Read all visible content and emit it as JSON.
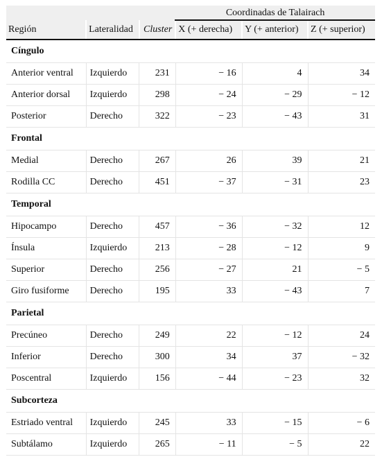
{
  "header": {
    "group_label": "Coordinadas de Talairach",
    "columns": [
      "Región",
      "Lateralidad",
      "Cluster",
      "X (+ derecha)",
      "Y (+ anterior)",
      "Z (+ superior)"
    ]
  },
  "sections": [
    {
      "name": "Cíngulo",
      "rows": [
        [
          "Anterior ventral",
          "Izquierdo",
          "231",
          "− 16",
          "4",
          "34"
        ],
        [
          "Anterior dorsal",
          "Izquierdo",
          "298",
          "− 24",
          "− 29",
          "− 12"
        ],
        [
          "Posterior",
          "Derecho",
          "322",
          "− 23",
          "− 43",
          "31"
        ]
      ]
    },
    {
      "name": "Frontal",
      "rows": [
        [
          "Medial",
          "Derecho",
          "267",
          "26",
          "39",
          "21"
        ],
        [
          "Rodilla CC",
          "Derecho",
          "451",
          "− 37",
          "− 31",
          "23"
        ]
      ]
    },
    {
      "name": "Temporal",
      "rows": [
        [
          "Hipocampo",
          "Derecho",
          "457",
          "− 36",
          "− 32",
          "12"
        ],
        [
          "Ínsula",
          "Izquierdo",
          "213",
          "− 28",
          "− 12",
          "9"
        ],
        [
          "Superior",
          "Derecho",
          "256",
          "− 27",
          "21",
          "− 5"
        ],
        [
          "Giro fusiforme",
          "Derecho",
          "195",
          "33",
          "− 43",
          "7"
        ]
      ]
    },
    {
      "name": "Parietal",
      "rows": [
        [
          "Precúneo",
          "Derecho",
          "249",
          "22",
          "− 12",
          "24"
        ],
        [
          "Inferior",
          "Derecho",
          "300",
          "34",
          "37",
          "− 32"
        ],
        [
          "Poscentral",
          "Izquierdo",
          "156",
          "− 44",
          "− 23",
          "32"
        ]
      ]
    },
    {
      "name": "Subcorteza",
      "rows": [
        [
          "Estriado ventral",
          "Izquierdo",
          "245",
          "33",
          "− 15",
          "− 6"
        ],
        [
          "Subtálamo",
          "Izquierdo",
          "265",
          "− 11",
          "− 5",
          "22"
        ]
      ]
    }
  ]
}
